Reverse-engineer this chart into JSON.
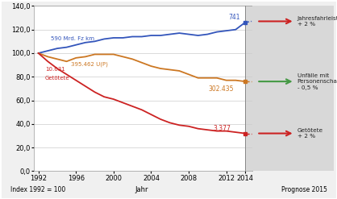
{
  "xlabel": "Jahr",
  "ylabel": "Index 1992 = 100",
  "prognose_label": "Prognose 2015",
  "ylim": [
    0,
    140
  ],
  "yticks": [
    0,
    20,
    40,
    60,
    80,
    100,
    120,
    140
  ],
  "xlim_left": 1991.5,
  "xlim_right": 2014.8,
  "split_year": 2014,
  "bg_color": "#f0f0f0",
  "plot_bg": "#ffffff",
  "prognose_bg": "#d8d8d8",
  "years_main": [
    1992,
    1993,
    1994,
    1995,
    1996,
    1997,
    1998,
    1999,
    2000,
    2001,
    2002,
    2003,
    2004,
    2005,
    2006,
    2007,
    2008,
    2009,
    2010,
    2011,
    2012,
    2013,
    2014
  ],
  "blue_data": [
    100,
    102,
    104,
    105,
    107,
    109,
    110,
    112,
    113,
    113,
    114,
    114,
    115,
    115,
    116,
    117,
    116,
    115,
    116,
    118,
    119,
    120,
    126
  ],
  "orange_data": [
    100,
    97,
    95,
    93,
    96,
    97,
    99,
    99,
    99,
    97,
    95,
    92,
    89,
    87,
    86,
    85,
    82,
    79,
    79,
    79,
    77,
    77,
    76
  ],
  "red_data": [
    100,
    93,
    87,
    82,
    77,
    72,
    67,
    63,
    61,
    58,
    55,
    52,
    48,
    44,
    41,
    39,
    38,
    36,
    35,
    34,
    34,
    33,
    32
  ],
  "blue_2015": 127,
  "orange_2015": 76,
  "red_2015": 32,
  "blue_color": "#3355bb",
  "orange_color": "#cc7722",
  "red_color": "#cc2222",
  "green_color": "#449944",
  "label_blue": "590 Mrd. Fz km",
  "label_orange": "395.462 U(P)",
  "label_red_1": "10.631",
  "label_red_2": "Getötete",
  "value_blue": "741",
  "value_orange": "302.435",
  "value_red": "3.377",
  "xticks": [
    1992,
    1996,
    2000,
    2004,
    2008,
    2012,
    2014
  ],
  "right_text_1": "Jahresfahrleistung\n+ 2 %",
  "right_text_2": "Unfälle mit\nPersonenschaden\n- 0,5 %",
  "right_text_3": "Getötete\n+ 2 %"
}
